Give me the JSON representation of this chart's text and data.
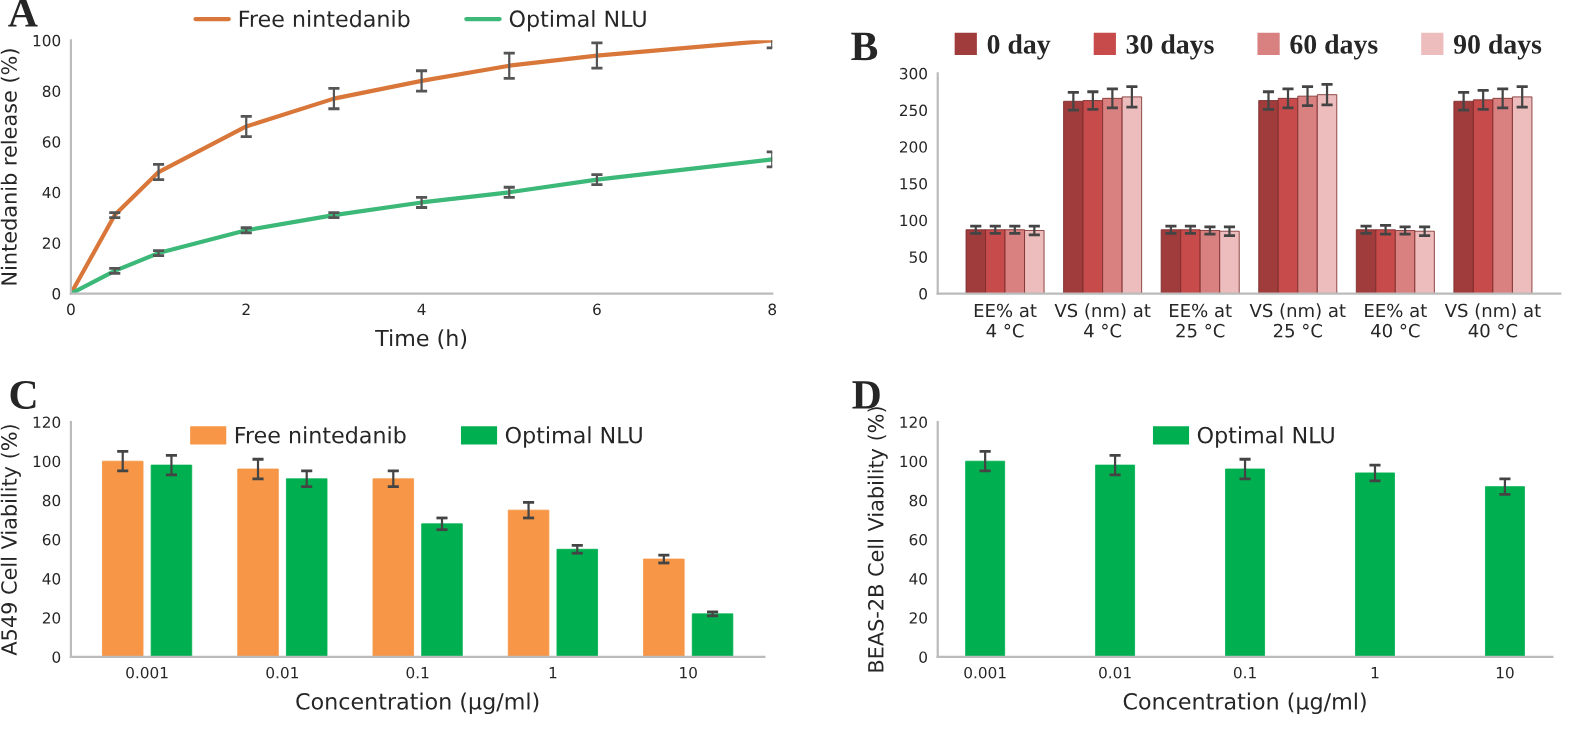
{
  "chart_data": [
    {
      "type": "line",
      "title": "A",
      "xlabel": "Time (h)",
      "ylabel": "Nintedanib release (%)",
      "xlim": [
        0,
        8
      ],
      "xticks": [
        0,
        2,
        4,
        6,
        8
      ],
      "ylim": [
        0,
        100
      ],
      "yticks": [
        0,
        20,
        40,
        60,
        80,
        100
      ],
      "grid": false,
      "legend": "top",
      "marker": "none",
      "line_style": "solid",
      "series": [
        {
          "name": "Free nintedanib",
          "color": "#d9773a",
          "x": [
            0,
            0.5,
            1,
            2,
            3,
            4,
            5,
            6,
            8
          ],
          "values": [
            0,
            31,
            48,
            66,
            77,
            84,
            90,
            94,
            100
          ],
          "errors": [
            null,
            1,
            3,
            4,
            4,
            4,
            5,
            5,
            3
          ]
        },
        {
          "name": "Optimal NLU",
          "color": "#3cb878",
          "x": [
            0,
            0.5,
            1,
            2,
            3,
            4,
            5,
            6,
            8
          ],
          "values": [
            0,
            9,
            16,
            25,
            31,
            36,
            40,
            45,
            53
          ],
          "errors": [
            null,
            1,
            1,
            1,
            1,
            2,
            2,
            2,
            3
          ]
        }
      ]
    },
    {
      "type": "bar",
      "title": "B",
      "categories": [
        "EE% at\n4 °C",
        "VS (nm) at\n4 °C",
        "EE% at\n25 °C",
        "VS (nm) at\n25 °C",
        "EE% at\n40 °C",
        "VS (nm) at\n40 °C"
      ],
      "ylim": [
        0,
        300
      ],
      "yticks": [
        0,
        50,
        100,
        150,
        200,
        250,
        300
      ],
      "grid": false,
      "legend": "top",
      "series": [
        {
          "name": "0 day",
          "color": "#a03c3c",
          "values": [
            87,
            262,
            87,
            263,
            87,
            262
          ],
          "errors": [
            5,
            12,
            5,
            12,
            5,
            12
          ]
        },
        {
          "name": "30 days",
          "color": "#c84b4b",
          "values": [
            87,
            263,
            87,
            266,
            87,
            264
          ],
          "errors": [
            5,
            12,
            5,
            13,
            6,
            13
          ]
        },
        {
          "name": "60 days",
          "color": "#d98080",
          "values": [
            87,
            266,
            86,
            269,
            86,
            266
          ],
          "errors": [
            5,
            13,
            5,
            13,
            5,
            13
          ]
        },
        {
          "name": "90 days",
          "color": "#edbcbc",
          "values": [
            86,
            268,
            85,
            271,
            85,
            268
          ],
          "errors": [
            6,
            14,
            6,
            14,
            6,
            14
          ]
        }
      ]
    },
    {
      "type": "bar",
      "title": "C",
      "xlabel": "Concentration (µg/ml)",
      "ylabel": "A549 Cell Viability (%)",
      "categories": [
        "0.001",
        "0.01",
        "0.1",
        "1",
        "10"
      ],
      "ylim": [
        0,
        120
      ],
      "yticks": [
        0,
        20,
        40,
        60,
        80,
        100,
        120
      ],
      "grid": false,
      "legend": "top",
      "series": [
        {
          "name": "Free nintedanib",
          "color": "#f79646",
          "values": [
            100,
            96,
            91,
            75,
            50
          ],
          "errors": [
            5,
            5,
            4,
            4,
            2
          ]
        },
        {
          "name": "Optimal NLU",
          "color": "#00b050",
          "values": [
            98,
            91,
            68,
            55,
            22
          ],
          "errors": [
            5,
            4,
            3,
            2,
            1
          ]
        }
      ]
    },
    {
      "type": "bar",
      "title": "D",
      "xlabel": "Concentration (µg/ml)",
      "ylabel": "BEAS-2B Cell Viability (%)",
      "categories": [
        "0.001",
        "0.01",
        "0.1",
        "1",
        "10"
      ],
      "ylim": [
        0,
        120
      ],
      "yticks": [
        0,
        20,
        40,
        60,
        80,
        100,
        120
      ],
      "grid": false,
      "legend": "top",
      "series": [
        {
          "name": "Optimal NLU",
          "color": "#00b050",
          "values": [
            100,
            98,
            96,
            94,
            87
          ],
          "errors": [
            5,
            5,
            5,
            4,
            4
          ]
        }
      ]
    }
  ]
}
